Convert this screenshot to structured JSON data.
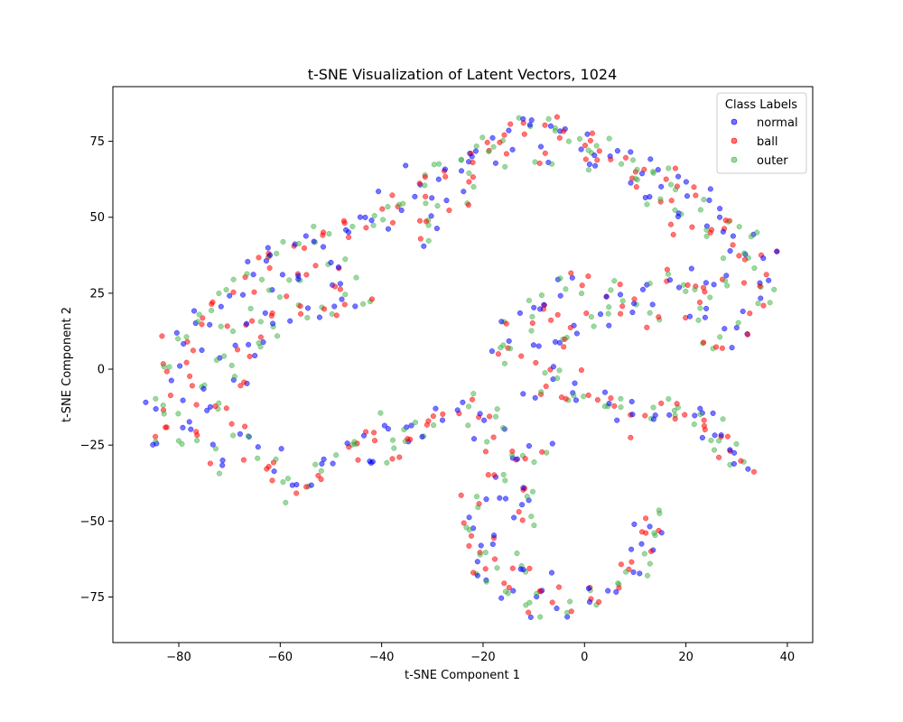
{
  "chart_data": {
    "type": "scatter",
    "title": "t-SNE Visualization of Latent Vectors, 1024",
    "xlabel": "t-SNE Component 1",
    "ylabel": "t-SNE Component 2",
    "xlim": [
      -93,
      45
    ],
    "ylim": [
      -90,
      93
    ],
    "xticks": [
      -80,
      -60,
      -40,
      -20,
      0,
      20,
      40
    ],
    "yticks": [
      -75,
      -50,
      -25,
      0,
      25,
      50,
      75
    ],
    "xtick_labels": [
      "−80",
      "−60",
      "−40",
      "−20",
      "0",
      "20",
      "40"
    ],
    "ytick_labels": [
      "−75",
      "−50",
      "−25",
      "0",
      "25",
      "50",
      "75"
    ],
    "grid": false,
    "legend": {
      "title": "Class Labels",
      "position": "top-right"
    },
    "series": [
      {
        "name": "normal",
        "color": "#0000ff",
        "alpha": 0.55
      },
      {
        "name": "ball",
        "color": "#ff0000",
        "alpha": 0.55
      },
      {
        "name": "outer",
        "color": "#3cb043",
        "alpha": 0.5
      }
    ],
    "clusters": [
      {
        "x": -85,
        "y": -22
      },
      {
        "x": -84,
        "y": -12
      },
      {
        "x": -82,
        "y": 0
      },
      {
        "x": -80,
        "y": 10
      },
      {
        "x": -76,
        "y": 16
      },
      {
        "x": -72,
        "y": 22
      },
      {
        "x": -68,
        "y": 28
      },
      {
        "x": -64,
        "y": 33
      },
      {
        "x": -60,
        "y": 37
      },
      {
        "x": -56,
        "y": 42
      },
      {
        "x": -52,
        "y": 44
      },
      {
        "x": -48,
        "y": 46
      },
      {
        "x": -44,
        "y": 49
      },
      {
        "x": -40,
        "y": 50
      },
      {
        "x": -36,
        "y": 56
      },
      {
        "x": -32,
        "y": 62
      },
      {
        "x": -28,
        "y": 66
      },
      {
        "x": -24,
        "y": 69
      },
      {
        "x": -20,
        "y": 73
      },
      {
        "x": -16,
        "y": 77
      },
      {
        "x": -12,
        "y": 81
      },
      {
        "x": -8,
        "y": 80
      },
      {
        "x": -4,
        "y": 78
      },
      {
        "x": 0,
        "y": 75
      },
      {
        "x": 4,
        "y": 73
      },
      {
        "x": 8,
        "y": 70
      },
      {
        "x": 12,
        "y": 66
      },
      {
        "x": 16,
        "y": 63
      },
      {
        "x": 20,
        "y": 60
      },
      {
        "x": 24,
        "y": 56
      },
      {
        "x": 28,
        "y": 50
      },
      {
        "x": 32,
        "y": 44
      },
      {
        "x": 35,
        "y": 36
      },
      {
        "x": 36,
        "y": 28
      },
      {
        "x": 34,
        "y": 20
      },
      {
        "x": 30,
        "y": 12
      },
      {
        "x": 26,
        "y": 8
      },
      {
        "x": 22,
        "y": 18
      },
      {
        "x": 20,
        "y": 28
      },
      {
        "x": -78,
        "y": -6
      },
      {
        "x": -74,
        "y": 4
      },
      {
        "x": -70,
        "y": 12
      },
      {
        "x": -66,
        "y": 18
      },
      {
        "x": -62,
        "y": 26
      },
      {
        "x": -56,
        "y": 30
      },
      {
        "x": -50,
        "y": 34
      },
      {
        "x": -46,
        "y": 28
      },
      {
        "x": -44,
        "y": 22
      },
      {
        "x": -50,
        "y": 20
      },
      {
        "x": -56,
        "y": 17
      },
      {
        "x": -62,
        "y": 14
      },
      {
        "x": -66,
        "y": 6
      },
      {
        "x": -68,
        "y": -2
      },
      {
        "x": -72,
        "y": -12
      },
      {
        "x": -68,
        "y": -22
      },
      {
        "x": -70,
        "y": -30
      },
      {
        "x": -76,
        "y": -22
      },
      {
        "x": -80,
        "y": -16
      },
      {
        "x": -64,
        "y": -28
      },
      {
        "x": -60,
        "y": -36
      },
      {
        "x": -56,
        "y": -40
      },
      {
        "x": -52,
        "y": -34
      },
      {
        "x": -48,
        "y": -28
      },
      {
        "x": -44,
        "y": -24
      },
      {
        "x": -40,
        "y": -20
      },
      {
        "x": -36,
        "y": -22
      },
      {
        "x": -32,
        "y": -20
      },
      {
        "x": -28,
        "y": -16
      },
      {
        "x": -24,
        "y": -12
      },
      {
        "x": -20,
        "y": -15
      },
      {
        "x": -18,
        "y": -22
      },
      {
        "x": -38,
        "y": -30
      },
      {
        "x": -30,
        "y": 46
      },
      {
        "x": -34,
        "y": 52
      },
      {
        "x": -26,
        "y": 52
      },
      {
        "x": -22,
        "y": 62
      },
      {
        "x": -16,
        "y": 70
      },
      {
        "x": -8,
        "y": 70
      },
      {
        "x": 2,
        "y": 68
      },
      {
        "x": 10,
        "y": 62
      },
      {
        "x": 14,
        "y": 56
      },
      {
        "x": 18,
        "y": 48
      },
      {
        "x": 26,
        "y": 44
      },
      {
        "x": 30,
        "y": 38
      },
      {
        "x": 28,
        "y": 28
      },
      {
        "x": 24,
        "y": 26
      },
      {
        "x": 16,
        "y": 30
      },
      {
        "x": 10,
        "y": 24
      },
      {
        "x": 4,
        "y": 27
      },
      {
        "x": -2,
        "y": 30
      },
      {
        "x": -6,
        "y": 22
      },
      {
        "x": -10,
        "y": 18
      },
      {
        "x": -14,
        "y": 14
      },
      {
        "x": -16,
        "y": 8
      },
      {
        "x": -12,
        "y": 6
      },
      {
        "x": -6,
        "y": 10
      },
      {
        "x": 0,
        "y": 14
      },
      {
        "x": 6,
        "y": 18
      },
      {
        "x": 12,
        "y": 18
      },
      {
        "x": -6,
        "y": 0
      },
      {
        "x": -8,
        "y": -6
      },
      {
        "x": -2,
        "y": -8
      },
      {
        "x": 2,
        "y": -10
      },
      {
        "x": 6,
        "y": -12
      },
      {
        "x": 10,
        "y": -14
      },
      {
        "x": 14,
        "y": -13
      },
      {
        "x": 18,
        "y": -14
      },
      {
        "x": 22,
        "y": -15
      },
      {
        "x": 25,
        "y": -18
      },
      {
        "x": 27,
        "y": -22
      },
      {
        "x": 29,
        "y": -27
      },
      {
        "x": 29,
        "y": -34
      },
      {
        "x": -10,
        "y": -28
      },
      {
        "x": -14,
        "y": -30
      },
      {
        "x": -18,
        "y": -36
      },
      {
        "x": -20,
        "y": -44
      },
      {
        "x": -22,
        "y": -52
      },
      {
        "x": -22,
        "y": -60
      },
      {
        "x": -20,
        "y": -68
      },
      {
        "x": -16,
        "y": -74
      },
      {
        "x": -10,
        "y": -78
      },
      {
        "x": -4,
        "y": -78
      },
      {
        "x": 2,
        "y": -76
      },
      {
        "x": 6,
        "y": -72
      },
      {
        "x": 9,
        "y": -66
      },
      {
        "x": 11,
        "y": -60
      },
      {
        "x": 13,
        "y": -54
      },
      {
        "x": 14,
        "y": -50
      },
      {
        "x": -16,
        "y": -60
      },
      {
        "x": -12,
        "y": -66
      },
      {
        "x": -8,
        "y": -72
      },
      {
        "x": -14,
        "y": -50
      },
      {
        "x": -12,
        "y": -42
      }
    ]
  }
}
